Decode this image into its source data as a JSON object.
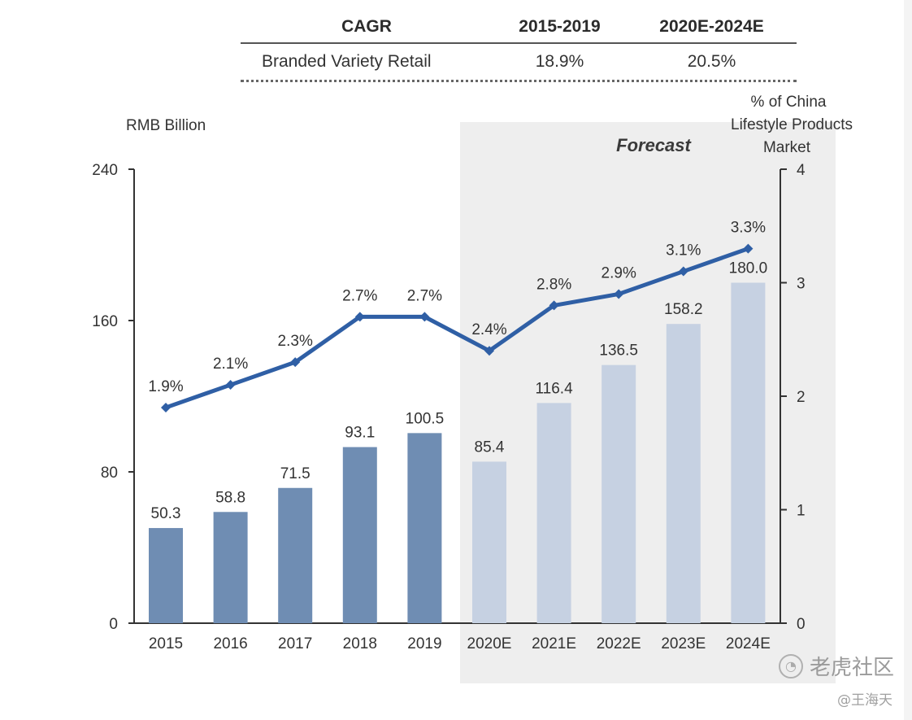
{
  "cagr_table": {
    "headers": [
      "CAGR",
      "2015-2019",
      "2020E-2024E"
    ],
    "rows": [
      [
        "Branded Variety Retail",
        "18.9%",
        "20.5%"
      ]
    ]
  },
  "chart_data": {
    "type": "bar",
    "forecast_label": "Forecast",
    "ylabel_left": "RMB Billion",
    "ylabel_right": "% of China\nLifestyle Products\nMarket",
    "categories": [
      "2015",
      "2016",
      "2017",
      "2018",
      "2019",
      "2020E",
      "2021E",
      "2022E",
      "2023E",
      "2024E"
    ],
    "left_axis": {
      "min": 0,
      "max": 240,
      "ticks": [
        0,
        80,
        160,
        240
      ]
    },
    "right_axis": {
      "min": 0,
      "max": 4,
      "ticks": [
        0,
        1,
        2,
        3,
        4
      ]
    },
    "bars": {
      "values": [
        50.3,
        58.8,
        71.5,
        93.1,
        100.5,
        85.4,
        116.4,
        136.5,
        158.2,
        180.0
      ],
      "labels": [
        "50.3",
        "58.8",
        "71.5",
        "93.1",
        "100.5",
        "85.4",
        "116.4",
        "136.5",
        "158.2",
        "180.0"
      ],
      "color_actual": "#6f8db3",
      "color_forecast": "#c6d1e2"
    },
    "line": {
      "values": [
        1.9,
        2.1,
        2.3,
        2.7,
        2.7,
        2.4,
        2.8,
        2.9,
        3.1,
        3.3
      ],
      "labels": [
        "1.9%",
        "2.1%",
        "2.3%",
        "2.7%",
        "2.7%",
        "2.4%",
        "2.8%",
        "2.9%",
        "3.1%",
        "3.3%"
      ],
      "color": "#2f5fa5"
    },
    "forecast_start_index": 5,
    "forecast_bg": "#eeeeee"
  },
  "watermark": {
    "brand": "老虎社区",
    "author": "@王海天"
  }
}
